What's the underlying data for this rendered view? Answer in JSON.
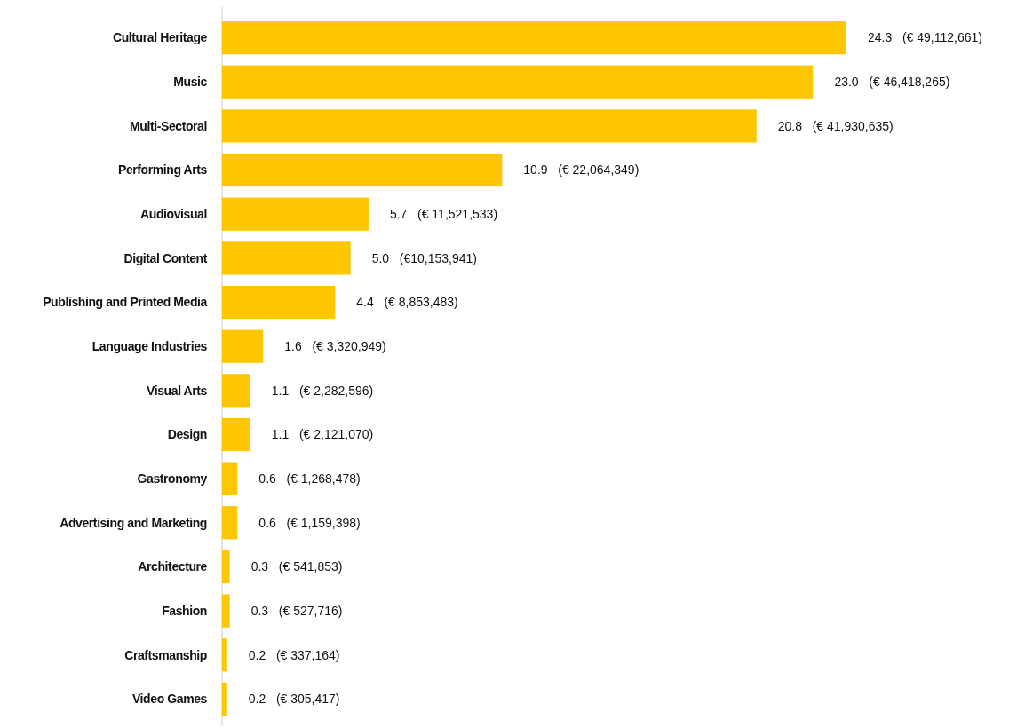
{
  "chart_data": {
    "type": "bar",
    "orientation": "horizontal",
    "color": "#fec600",
    "categories": [
      "Cultural Heritage",
      "Music",
      "Multi-Sectoral",
      "Performing Arts",
      "Audiovisual",
      "Digital Content",
      "Publishing and Printed Media",
      "Language Industries",
      "Visual Arts",
      "Design",
      "Gastronomy",
      "Advertising and Marketing",
      "Architecture",
      "Fashion",
      "Craftsmanship",
      "Video Games"
    ],
    "values": [
      24.3,
      23.0,
      20.8,
      10.9,
      5.7,
      5.0,
      4.4,
      1.6,
      1.1,
      1.1,
      0.6,
      0.6,
      0.3,
      0.3,
      0.2,
      0.2
    ],
    "value_labels": [
      "24.3   (€ 49,112,661)",
      "23.0   (€ 46,418,265)",
      "20.8   (€ 41,930,635)",
      "10.9   (€ 22,064,349)",
      "5.7   (€ 11,521,533)",
      "5.0   (€10,153,941)",
      "4.4   (€ 8,853,483)",
      "1.6   (€ 3,320,949)",
      "1.1   (€ 2,282,596)",
      "1.1   (€ 2,121,070)",
      "0.6   (€ 1,268,478)",
      "0.6   (€ 1,159,398)",
      "0.3   (€ 541,853)",
      "0.3   (€ 527,716)",
      "0.2   (€ 337,164)",
      "0.2   (€ 305,417)"
    ]
  }
}
